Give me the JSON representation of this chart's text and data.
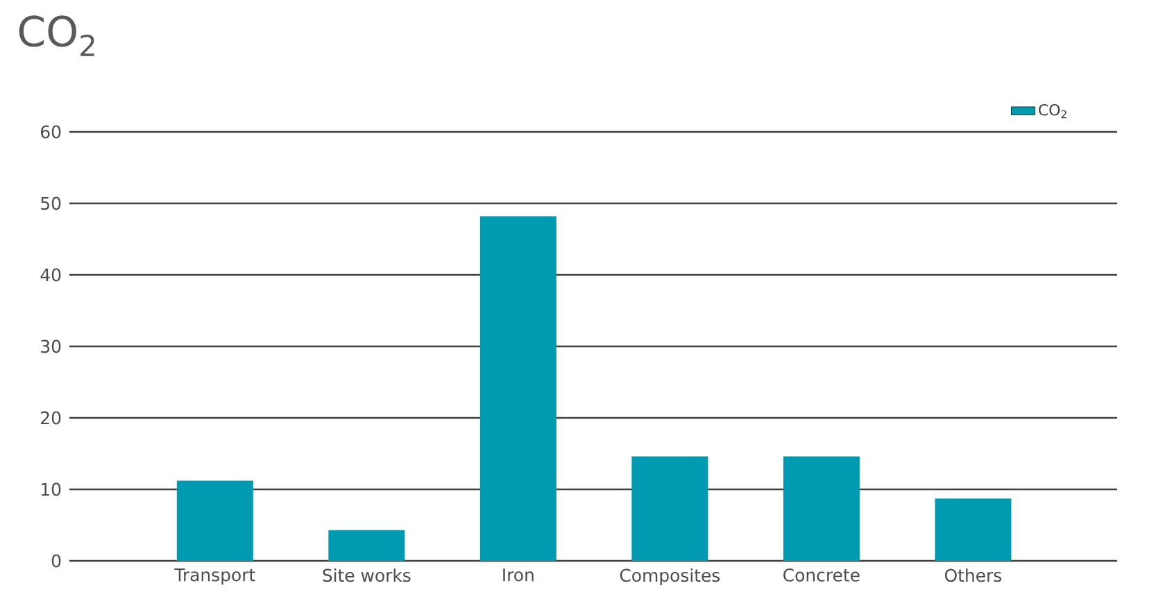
{
  "chart_data": {
    "type": "bar",
    "title": "CO$_{2}$",
    "categories": [
      "Transport",
      "Site works",
      "Iron",
      "Composites",
      "Concrete",
      "Others"
    ],
    "series": [
      {
        "name": "CO$_{2}$",
        "color": "#009ab1",
        "values": [
          11.2,
          4.3,
          48.2,
          14.6,
          14.6,
          8.7
        ]
      }
    ],
    "ylim": [
      0,
      60
    ],
    "yticks": [
      0,
      10,
      20,
      30,
      40,
      50,
      60
    ],
    "grid": "y",
    "legend": "top right"
  }
}
